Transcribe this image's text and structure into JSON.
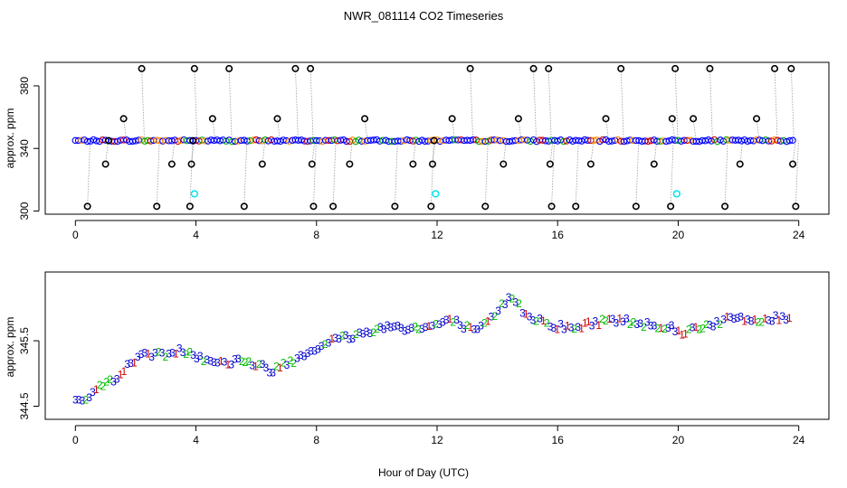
{
  "chart_data": {
    "type": "scatter",
    "title": "NWR_081114  CO2 Timeseries",
    "xlabel": "Hour of Day (UTC)",
    "panels": [
      {
        "id": "top",
        "ylabel": "approx. ppm",
        "xlim": [
          -1,
          25
        ],
        "ylim": [
          298,
          395
        ],
        "xticks": [
          0,
          4,
          8,
          12,
          16,
          20,
          24
        ],
        "yticks": [
          300,
          340,
          380
        ],
        "baseline_ppm": 345,
        "series": [
          {
            "name": "blue circles",
            "color": "#0000ff",
            "description": "dense run near 345 ppm"
          },
          {
            "name": "black circle outliers",
            "color": "#000000",
            "x": [
              0.4,
              1.0,
              1.1,
              1.6,
              2.2,
              2.7,
              3.2,
              3.8,
              3.85,
              3.9,
              3.95,
              4.55,
              5.1,
              5.6,
              6.2,
              6.7,
              7.3,
              7.8,
              7.85,
              7.9,
              8.55,
              9.1,
              9.6,
              10.6,
              11.2,
              11.8,
              11.85,
              11.9,
              12.5,
              13.1,
              13.6,
              14.2,
              14.7,
              15.2,
              15.7,
              15.75,
              15.8,
              16.6,
              17.1,
              17.6,
              18.1,
              18.6,
              19.2,
              19.75,
              19.8,
              19.9,
              20.5,
              21.05,
              21.55,
              22.05,
              22.6,
              23.2,
              23.75,
              23.8,
              23.9
            ],
            "y": [
              303,
              330,
              345,
              359,
              391,
              303,
              330,
              303,
              330,
              345,
              391,
              359,
              391,
              303,
              330,
              359,
              391,
              391,
              330,
              303,
              303,
              330,
              359,
              303,
              330,
              303,
              330,
              345,
              359,
              391,
              303,
              330,
              359,
              391,
              391,
              330,
              303,
              303,
              330,
              359,
              391,
              303,
              330,
              303,
              359,
              391,
              359,
              391,
              303,
              330,
              359,
              391,
              391,
              330,
              303
            ]
          },
          {
            "name": "cyan points",
            "color": "#00e5ee",
            "x": [
              3.95,
              11.95,
              19.95
            ],
            "y": [
              311,
              311,
              311
            ]
          }
        ]
      },
      {
        "id": "bottom",
        "ylabel": "approx. ppm",
        "xlim": [
          -1,
          25
        ],
        "ylim": [
          344.3,
          346.55
        ],
        "xticks": [
          0,
          4,
          8,
          12,
          16,
          20,
          24
        ],
        "yticks": [
          344.5,
          345.5
        ],
        "series_labels": [
          "1",
          "2",
          "3"
        ],
        "colors": {
          "1": "#cc0000",
          "2": "#00bb00",
          "3": "#0000cc"
        },
        "profile_x": [
          0.0,
          0.2,
          0.5,
          0.8,
          1.2,
          1.6,
          2.0,
          2.3,
          2.7,
          3.0,
          3.3,
          3.6,
          4.0,
          4.5,
          5.0,
          5.5,
          6.0,
          6.5,
          7.0,
          7.5,
          8.0,
          8.5,
          9.0,
          9.5,
          10.0,
          10.5,
          11.0,
          11.5,
          12.0,
          12.5,
          13.0,
          13.3,
          13.7,
          14.0,
          14.3,
          14.5,
          14.8,
          15.2,
          15.6,
          16.0,
          16.5,
          17.0,
          17.5,
          18.0,
          18.5,
          19.0,
          19.5,
          19.8,
          20.0,
          20.5,
          21.0,
          21.5,
          22.0,
          22.5,
          23.0,
          23.5,
          23.8
        ],
        "profile_y": [
          344.62,
          344.6,
          344.68,
          344.78,
          344.9,
          345.05,
          345.2,
          345.33,
          345.28,
          345.3,
          345.32,
          345.36,
          345.28,
          345.2,
          345.15,
          345.22,
          345.12,
          345.05,
          345.15,
          345.28,
          345.4,
          345.5,
          345.55,
          345.6,
          345.68,
          345.72,
          345.7,
          345.68,
          345.75,
          345.8,
          345.7,
          345.6,
          345.8,
          345.92,
          346.12,
          346.18,
          345.98,
          345.85,
          345.78,
          345.72,
          345.68,
          345.75,
          345.8,
          345.82,
          345.78,
          345.76,
          345.72,
          345.7,
          345.62,
          345.68,
          345.75,
          345.8,
          345.85,
          345.8,
          345.82,
          345.85,
          345.82
        ]
      }
    ]
  }
}
